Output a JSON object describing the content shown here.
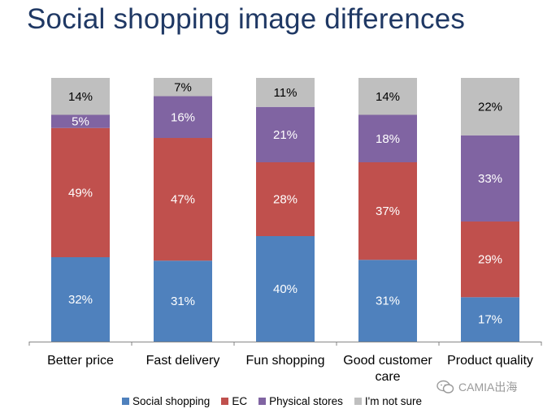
{
  "title": "Social shopping image differences",
  "watermark": "CAMIA出海",
  "chart_data": {
    "type": "bar",
    "stacked": true,
    "normalized": true,
    "categories": [
      [
        "Better price"
      ],
      [
        "Fast delivery"
      ],
      [
        "Fun shopping"
      ],
      [
        "Good customer",
        "care"
      ],
      [
        "Product quality"
      ]
    ],
    "series": [
      {
        "name": "Social shopping",
        "color": "#4f81bd",
        "values": [
          32,
          31,
          40,
          31,
          17
        ],
        "labels": [
          "32%",
          "31%",
          "40%",
          "31%",
          "17%"
        ]
      },
      {
        "name": "EC",
        "color": "#c0504d",
        "values": [
          49,
          47,
          28,
          37,
          29
        ],
        "labels": [
          "49%",
          "47%",
          "28%",
          "37%",
          "29%"
        ]
      },
      {
        "name": "Physical stores",
        "color": "#8064a2",
        "values": [
          5,
          16,
          21,
          18,
          33
        ],
        "labels": [
          "5%",
          "16%",
          "21%",
          "18%",
          "33%"
        ]
      },
      {
        "name": "I'm not sure",
        "color": "#bfbfbf",
        "values": [
          14,
          7,
          11,
          14,
          22
        ],
        "labels": [
          "14%",
          "7%",
          "11%",
          "14%",
          "22%"
        ]
      }
    ],
    "legend_position": "bottom",
    "grid": false
  }
}
